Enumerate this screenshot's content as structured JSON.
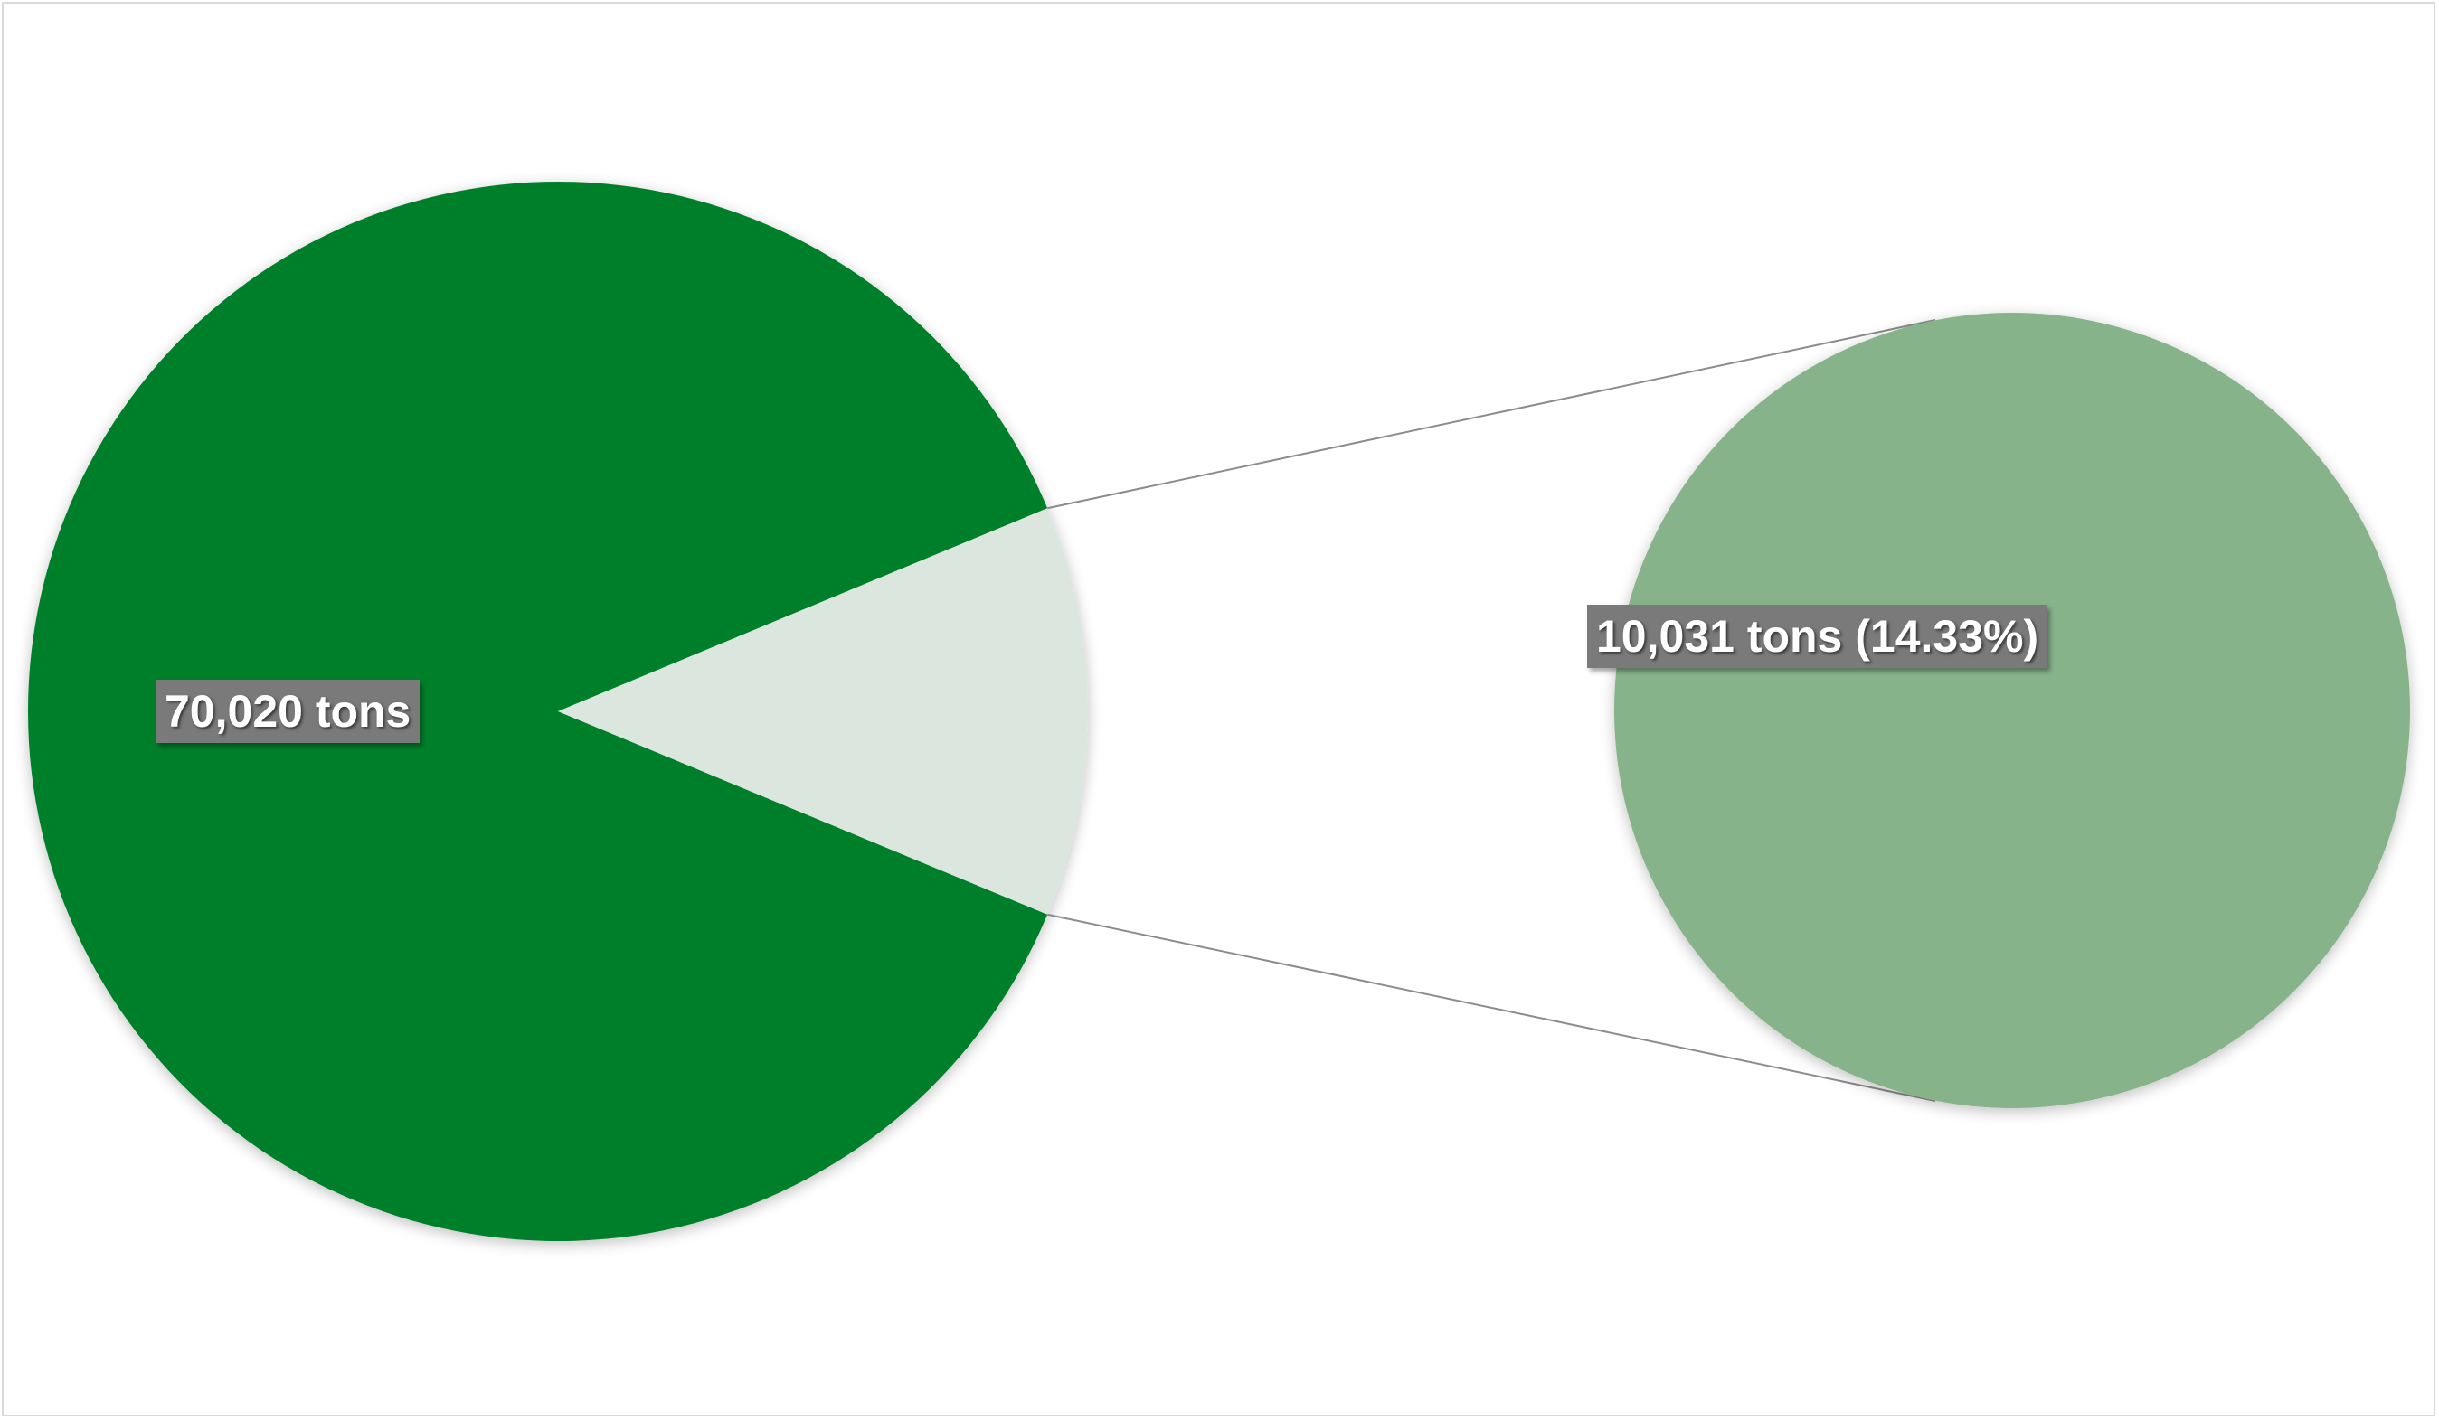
{
  "chart_data": {
    "type": "pie",
    "variant": "pie-of-pie",
    "slices": [
      {
        "label": "70,020 tons",
        "value": 70020,
        "color": "#007f2c"
      },
      {
        "label": "10,031 tons (14.33%)",
        "value": 10031,
        "color": "#dbe7de"
      }
    ],
    "secondary": {
      "label": "10,031 tons (14.33%)",
      "value": 10031,
      "percent": 14.33,
      "color": "#86b38a"
    },
    "connector_color": "#8c8c8c",
    "label_box_color": "#7a7a7a"
  }
}
